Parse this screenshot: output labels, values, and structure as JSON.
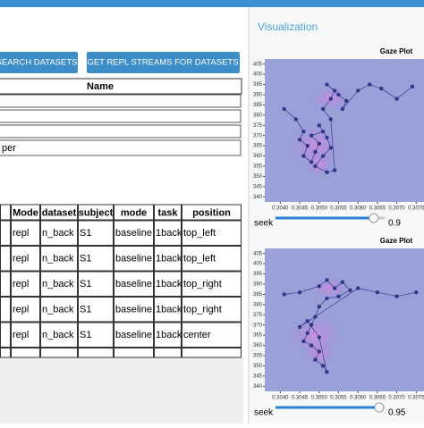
{
  "header": {
    "title": "Visualization"
  },
  "buttons": [
    "SEARCH DATASETS",
    "GET REPL STREAMS FOR DATASETS"
  ],
  "name_table": {
    "header": "Name",
    "visible_text": "per"
  },
  "stream_table": {
    "columns": [
      "Mode",
      "dataset",
      "subject",
      "mode",
      "task",
      "position"
    ],
    "rows": [
      [
        "repl",
        "n_back",
        "S1",
        "baseline",
        "1back",
        "top_left"
      ],
      [
        "repl",
        "n_back",
        "S1",
        "baseline",
        "1back",
        "top_left"
      ],
      [
        "repl",
        "n_back",
        "S1",
        "baseline",
        "1back",
        "top_right"
      ],
      [
        "repl",
        "n_back",
        "S1",
        "baseline",
        "1back",
        "top_right"
      ],
      [
        "repl",
        "n_back",
        "S1",
        "baseline",
        "1back",
        "center"
      ]
    ]
  },
  "plots": [
    {
      "title": "Gaze Plot",
      "xlim": [
        0.3036,
        0.3077
      ],
      "ylim": [
        337.5,
        407.5
      ],
      "xticks": [
        {
          "value": 0.304,
          "label": "0.3040"
        },
        {
          "value": 0.3045,
          "label": "0.3045"
        },
        {
          "value": 0.305,
          "label": "0.3050"
        },
        {
          "value": 0.3055,
          "label": "0.3055"
        },
        {
          "value": 0.306,
          "label": "0.3060"
        },
        {
          "value": 0.3065,
          "label": "0.3065"
        },
        {
          "value": 0.307,
          "label": "0.3070"
        },
        {
          "value": 0.3075,
          "label": "0.3075"
        }
      ],
      "yticks": [
        405,
        400,
        395,
        390,
        385,
        380,
        375,
        370,
        365,
        360,
        355,
        350,
        345,
        340
      ],
      "points": [
        [
          0.3041,
          383
        ],
        [
          0.3044,
          378
        ],
        [
          0.3046,
          372
        ],
        [
          0.3045,
          368
        ],
        [
          0.3047,
          365
        ],
        [
          0.3046,
          360
        ],
        [
          0.3048,
          357
        ],
        [
          0.3049,
          362
        ],
        [
          0.305,
          366
        ],
        [
          0.3048,
          370
        ],
        [
          0.3051,
          372
        ],
        [
          0.305,
          375
        ],
        [
          0.3052,
          369
        ],
        [
          0.3053,
          364
        ],
        [
          0.3051,
          360
        ],
        [
          0.3049,
          355
        ],
        [
          0.3052,
          352
        ],
        [
          0.3054,
          353
        ],
        [
          0.3053,
          378
        ],
        [
          0.3051,
          383
        ],
        [
          0.3053,
          388
        ],
        [
          0.3054,
          392
        ],
        [
          0.3052,
          395
        ],
        [
          0.3055,
          390
        ],
        [
          0.3057,
          387
        ],
        [
          0.3056,
          383
        ],
        [
          0.306,
          392
        ],
        [
          0.3063,
          395
        ],
        [
          0.3066,
          393
        ],
        [
          0.307,
          388
        ],
        [
          0.3074,
          394
        ]
      ],
      "seek_label": "seek",
      "seek": 0.9
    },
    {
      "title": "Gaze Plot",
      "xlim": [
        0.3036,
        0.3077
      ],
      "ylim": [
        337.5,
        407.5
      ],
      "xticks": [
        {
          "value": 0.304,
          "label": "0.3040"
        },
        {
          "value": 0.3045,
          "label": "0.3045"
        },
        {
          "value": 0.305,
          "label": "0.3050"
        },
        {
          "value": 0.3055,
          "label": "0.3055"
        },
        {
          "value": 0.306,
          "label": "0.3060"
        },
        {
          "value": 0.3065,
          "label": "0.3065"
        },
        {
          "value": 0.307,
          "label": "0.3070"
        },
        {
          "value": 0.3075,
          "label": "0.3075"
        }
      ],
      "yticks": [
        405,
        400,
        395,
        390,
        385,
        380,
        375,
        370,
        365,
        360,
        355,
        350,
        345,
        340
      ],
      "points": [
        [
          0.3041,
          385
        ],
        [
          0.3045,
          386
        ],
        [
          0.305,
          389
        ],
        [
          0.3052,
          392
        ],
        [
          0.3054,
          388
        ],
        [
          0.3056,
          391
        ],
        [
          0.3058,
          387
        ],
        [
          0.3055,
          384
        ],
        [
          0.3052,
          383
        ],
        [
          0.305,
          379
        ],
        [
          0.3049,
          374
        ],
        [
          0.3048,
          370
        ],
        [
          0.3047,
          366
        ],
        [
          0.3046,
          362
        ],
        [
          0.3048,
          360
        ],
        [
          0.305,
          357
        ],
        [
          0.3049,
          353
        ],
        [
          0.3051,
          350
        ],
        [
          0.3052,
          347
        ],
        [
          0.305,
          364
        ],
        [
          0.3047,
          372
        ],
        [
          0.3045,
          369
        ],
        [
          0.306,
          388
        ],
        [
          0.3065,
          386
        ],
        [
          0.307,
          384
        ],
        [
          0.3075,
          386
        ]
      ],
      "seek_label": "seek",
      "seek": 0.95
    }
  ]
}
